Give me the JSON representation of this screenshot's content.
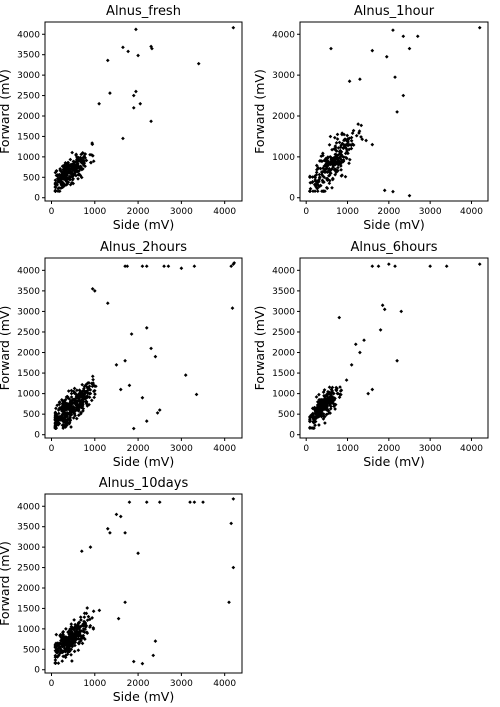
{
  "figure": {
    "layout": "3x2 grid",
    "panel_count": 5
  },
  "chart_data": [
    {
      "type": "scatter",
      "title": "Alnus_fresh",
      "xlabel": "Side (mV)",
      "ylabel": "Forward (mV)",
      "xlim": [
        -150,
        4400
      ],
      "ylim": [
        -80,
        4300
      ],
      "xticks": [
        "0",
        "1000",
        "2000",
        "3000",
        "4000"
      ],
      "yticks": [
        "0",
        "500",
        "1000",
        "1500",
        "2000",
        "2500",
        "3000",
        "3500",
        "4000"
      ],
      "grid": false,
      "marker_color": "#000000",
      "cluster": {
        "n": 260,
        "cx": 430,
        "cy": 650,
        "sx": 220,
        "sy": 280,
        "slope": 0.75,
        "seed": 11
      },
      "points": [
        [
          4200,
          4160
        ],
        [
          3400,
          3280
        ],
        [
          2300,
          3700
        ],
        [
          2320,
          3650
        ],
        [
          1950,
          4120
        ],
        [
          1650,
          3680
        ],
        [
          1770,
          3580
        ],
        [
          2000,
          3480
        ],
        [
          2300,
          1870
        ],
        [
          1900,
          2200
        ],
        [
          2050,
          2300
        ],
        [
          1350,
          2560
        ],
        [
          1100,
          2300
        ],
        [
          1650,
          1450
        ],
        [
          1300,
          3360
        ],
        [
          1950,
          2600
        ],
        [
          1900,
          2500
        ]
      ]
    },
    {
      "type": "scatter",
      "title": "Alnus_1hour",
      "xlabel": "Side (mV)",
      "ylabel": "Forward (mV)",
      "xlim": [
        -150,
        4400
      ],
      "ylim": [
        -80,
        4300
      ],
      "xticks": [
        "0",
        "1000",
        "2000",
        "3000",
        "4000"
      ],
      "yticks": [
        "0",
        "1000",
        "2000",
        "3000",
        "4000"
      ],
      "grid": false,
      "marker_color": "#000000",
      "cluster": {
        "n": 260,
        "cx": 600,
        "cy": 800,
        "sx": 300,
        "sy": 420,
        "slope": 1.0,
        "seed": 23
      },
      "points": [
        [
          4200,
          4160
        ],
        [
          2100,
          4100
        ],
        [
          2350,
          3950
        ],
        [
          2500,
          3650
        ],
        [
          2700,
          3950
        ],
        [
          1600,
          3600
        ],
        [
          600,
          3650
        ],
        [
          2150,
          2950
        ],
        [
          2200,
          2100
        ],
        [
          2350,
          2500
        ],
        [
          1950,
          3450
        ],
        [
          2500,
          50
        ],
        [
          2100,
          150
        ],
        [
          1900,
          180
        ],
        [
          1300,
          2900
        ],
        [
          1050,
          2850
        ],
        [
          1450,
          1400
        ],
        [
          1600,
          1300
        ]
      ]
    },
    {
      "type": "scatter",
      "title": "Alnus_2hours",
      "xlabel": "Side (mV)",
      "ylabel": "Forward (mV)",
      "xlim": [
        -150,
        4400
      ],
      "ylim": [
        -80,
        4300
      ],
      "xticks": [
        "0",
        "1000",
        "2000",
        "3000",
        "4000"
      ],
      "yticks": [
        "0",
        "500",
        "1000",
        "1500",
        "2000",
        "2500",
        "3000",
        "3500",
        "4000"
      ],
      "grid": false,
      "marker_color": "#000000",
      "cluster": {
        "n": 360,
        "cx": 450,
        "cy": 680,
        "sx": 240,
        "sy": 320,
        "slope": 0.85,
        "seed": 37
      },
      "points": [
        [
          1700,
          4100
        ],
        [
          1750,
          4100
        ],
        [
          2100,
          4100
        ],
        [
          2200,
          4100
        ],
        [
          2600,
          4100
        ],
        [
          2700,
          4100
        ],
        [
          3000,
          4050
        ],
        [
          3300,
          4100
        ],
        [
          4150,
          4100
        ],
        [
          4200,
          4150
        ],
        [
          4220,
          4180
        ],
        [
          4180,
          3080
        ],
        [
          3350,
          980
        ],
        [
          3100,
          1450
        ],
        [
          2450,
          530
        ],
        [
          2500,
          600
        ],
        [
          2200,
          330
        ],
        [
          1900,
          150
        ],
        [
          2200,
          2600
        ],
        [
          1850,
          2450
        ],
        [
          1700,
          1800
        ],
        [
          1500,
          1700
        ],
        [
          1000,
          3500
        ],
        [
          950,
          3550
        ],
        [
          1300,
          3200
        ],
        [
          2300,
          2100
        ],
        [
          1800,
          1200
        ],
        [
          1600,
          1100
        ],
        [
          2100,
          900
        ],
        [
          2400,
          1900
        ]
      ]
    },
    {
      "type": "scatter",
      "title": "Alnus_6hours",
      "xlabel": "Side (mV)",
      "ylabel": "Forward (mV)",
      "xlim": [
        -150,
        4400
      ],
      "ylim": [
        -80,
        4300
      ],
      "xticks": [
        "0",
        "1000",
        "2000",
        "3000",
        "4000"
      ],
      "yticks": [
        "0",
        "500",
        "1000",
        "1500",
        "2000",
        "2500",
        "3000",
        "3500",
        "4000"
      ],
      "grid": false,
      "marker_color": "#000000",
      "cluster": {
        "n": 240,
        "cx": 430,
        "cy": 700,
        "sx": 200,
        "sy": 280,
        "slope": 0.9,
        "seed": 53
      },
      "points": [
        [
          1600,
          4100
        ],
        [
          1750,
          4100
        ],
        [
          2000,
          4150
        ],
        [
          2150,
          4100
        ],
        [
          3000,
          4100
        ],
        [
          3400,
          4100
        ],
        [
          4200,
          4150
        ],
        [
          1850,
          3150
        ],
        [
          1900,
          3050
        ],
        [
          2300,
          3000
        ],
        [
          1800,
          2550
        ],
        [
          2200,
          1800
        ],
        [
          1600,
          1100
        ],
        [
          1500,
          1000
        ],
        [
          1300,
          2000
        ],
        [
          1200,
          2200
        ],
        [
          800,
          2850
        ],
        [
          1400,
          2300
        ],
        [
          1100,
          1700
        ]
      ]
    },
    {
      "type": "scatter",
      "title": "Alnus_10days",
      "xlabel": "Side (mV)",
      "ylabel": "Forward (mV)",
      "xlim": [
        -150,
        4400
      ],
      "ylim": [
        -80,
        4300
      ],
      "xticks": [
        "0",
        "1000",
        "2000",
        "3000",
        "4000"
      ],
      "yticks": [
        "0",
        "500",
        "1000",
        "1500",
        "2000",
        "2500",
        "3000",
        "3500",
        "4000"
      ],
      "grid": false,
      "marker_color": "#000000",
      "cluster": {
        "n": 300,
        "cx": 450,
        "cy": 750,
        "sx": 240,
        "sy": 320,
        "slope": 0.9,
        "seed": 71
      },
      "points": [
        [
          1800,
          4100
        ],
        [
          2200,
          4100
        ],
        [
          2500,
          4100
        ],
        [
          3200,
          4100
        ],
        [
          3300,
          4100
        ],
        [
          3500,
          4100
        ],
        [
          4200,
          4180
        ],
        [
          1500,
          3800
        ],
        [
          1600,
          3750
        ],
        [
          1300,
          3450
        ],
        [
          1350,
          3350
        ],
        [
          1700,
          3350
        ],
        [
          2000,
          2850
        ],
        [
          2400,
          700
        ],
        [
          2350,
          350
        ],
        [
          1900,
          200
        ],
        [
          2100,
          150
        ],
        [
          4100,
          1650
        ],
        [
          4200,
          2500
        ],
        [
          4150,
          3580
        ],
        [
          1700,
          1650
        ],
        [
          1550,
          1250
        ],
        [
          700,
          2900
        ],
        [
          900,
          3000
        ]
      ]
    }
  ]
}
